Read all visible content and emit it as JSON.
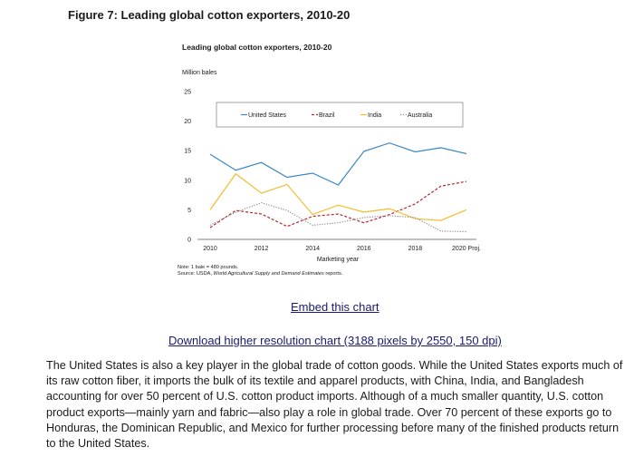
{
  "figure_heading": "Figure 7: Leading global cotton exporters, 2010-20",
  "links": {
    "embed": "Embed this chart",
    "download": "Download higher resolution chart (3188 pixels by 2550, 150 dpi)"
  },
  "paragraph": "The United States is also a key player in the global trade of cotton goods. While the United States exports much of its raw cotton fiber, it imports the bulk of its textile and apparel products, with China, India, and Bangladesh accounting for over 50 percent of U.S. cotton product imports. Although of a much smaller quantity, U.S. cotton product exports—mainly yarn and fabric—also play a role in global trade. Over 70 percent of these exports go to Honduras, the Dominican Republic, and Mexico for further processing before many of the finished products return to the United States.",
  "chart_data": {
    "type": "line",
    "title": "Leading global cotton exporters, 2010-20",
    "ylabel": "Million bales",
    "xlabel": "Marketing year",
    "ylim": [
      0,
      25
    ],
    "yticks": [
      0,
      5,
      10,
      15,
      20,
      25
    ],
    "x": [
      2010,
      2011,
      2012,
      2013,
      2014,
      2015,
      2016,
      2017,
      2018,
      2019,
      2020
    ],
    "xticks": [
      2010,
      2012,
      2014,
      2016,
      2018,
      2020
    ],
    "xtick_labels": [
      "2010",
      "2012",
      "2014",
      "2016",
      "2018",
      "2020 Proj."
    ],
    "legend_position": "top-center",
    "grid": false,
    "series": [
      {
        "name": "United States",
        "color": "#3a87c4",
        "style": "solid",
        "values": [
          14.4,
          11.7,
          13.0,
          10.5,
          11.2,
          9.2,
          14.9,
          16.3,
          14.8,
          15.5,
          14.5
        ]
      },
      {
        "name": "Brazil",
        "color": "#b5272d",
        "style": "dashed",
        "values": [
          2.0,
          4.9,
          4.3,
          2.2,
          3.9,
          4.3,
          2.8,
          4.2,
          6.0,
          9.0,
          9.8
        ]
      },
      {
        "name": "India",
        "color": "#f2bd2c",
        "style": "solid",
        "values": [
          5.0,
          11.1,
          7.8,
          9.3,
          4.2,
          5.8,
          4.6,
          5.2,
          3.5,
          3.2,
          5.0
        ]
      },
      {
        "name": "Australia",
        "color": "#8c8c8c",
        "style": "dotted",
        "values": [
          2.4,
          4.6,
          6.2,
          4.9,
          2.4,
          2.8,
          3.7,
          4.0,
          3.7,
          1.4,
          1.3
        ]
      }
    ],
    "notes": [
      {
        "parts": [
          {
            "text": "Note: 1 bale = 480 pounds.",
            "italic": false
          }
        ]
      },
      {
        "parts": [
          {
            "text": "Source: USDA, ",
            "italic": false
          },
          {
            "text": "World Agricultural Supply and Demand Estimates",
            "italic": true
          },
          {
            "text": " reports.",
            "italic": false
          }
        ]
      }
    ]
  }
}
